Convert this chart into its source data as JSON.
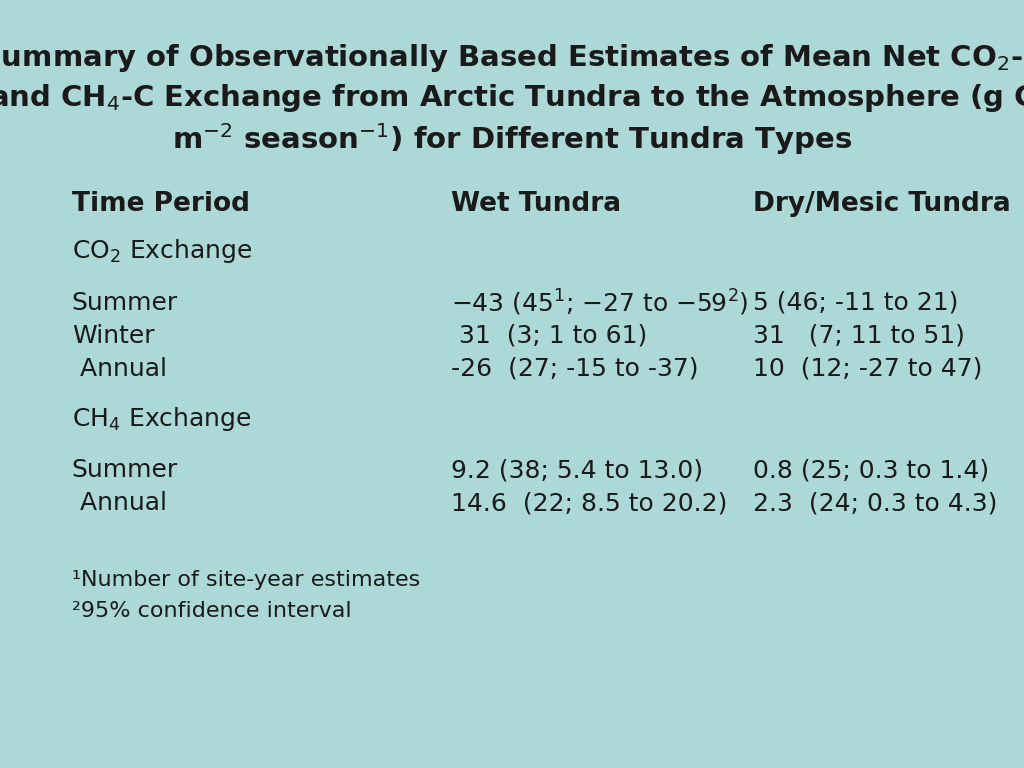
{
  "background_color": "#add8d8",
  "bold_color": "#1a1a1a",
  "font_size_title": 21,
  "font_size_header": 19,
  "font_size_body": 18,
  "font_size_footnote": 16,
  "header_col1": "Time Period",
  "header_col2": "Wet Tundra",
  "header_col3": "Dry/Mesic Tundra",
  "footnote1": "¹Number of site-year estimates",
  "footnote2": "²95% confidence interval"
}
